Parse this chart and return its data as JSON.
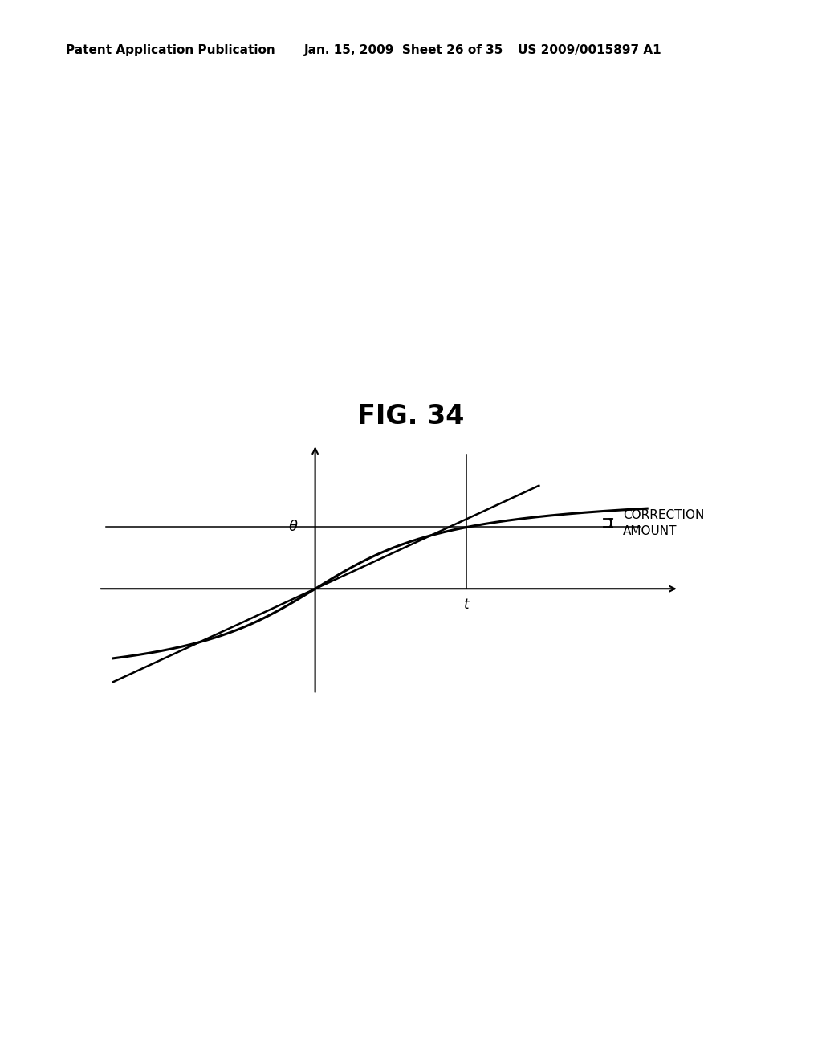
{
  "title": "FIG. 34",
  "header_left": "Patent Application Publication",
  "header_mid": "Jan. 15, 2009  Sheet 26 of 35",
  "header_right": "US 2009/0015897 A1",
  "background_color": "#ffffff",
  "text_color": "#000000",
  "theta_label": "θ",
  "t_label": "t",
  "correction_label": "CORRECTION\nAMOUNT",
  "fig_title_fontsize": 24,
  "header_fontsize": 11,
  "annotation_fontsize": 11,
  "xmin": -1.5,
  "xmax": 2.6,
  "ymin": -1.3,
  "ymax": 1.9,
  "t_mark": 1.05,
  "curve_scale_x": 1.4,
  "curve_scale_y": 0.78,
  "line_slope": 0.82
}
